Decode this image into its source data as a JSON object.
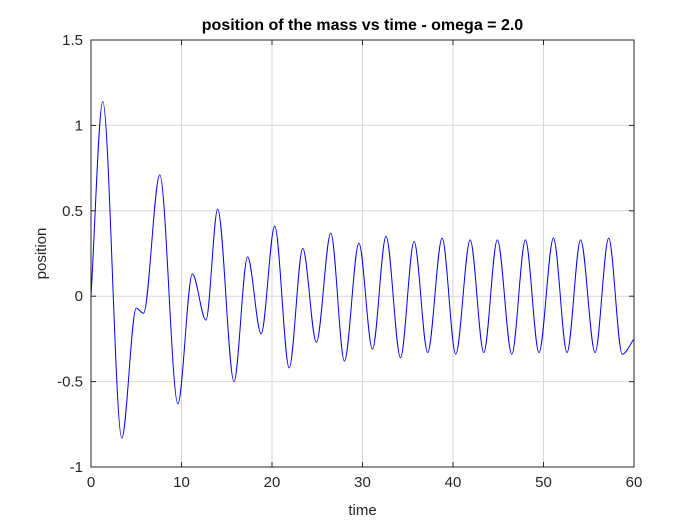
{
  "chart_data": {
    "type": "line",
    "title": "position of the mass vs time - omega = 2.0",
    "xlabel": "time",
    "ylabel": "position",
    "xlim": [
      0,
      60
    ],
    "ylim": [
      -1,
      1.5
    ],
    "xticks": [
      "0",
      "10",
      "20",
      "30",
      "40",
      "50",
      "60"
    ],
    "yticks": [
      "-1",
      "-0.5",
      "0",
      "0.5",
      "1",
      "1.5"
    ],
    "grid": true,
    "line_color": "#0000ff",
    "series": [
      {
        "x": [
          0,
          1.3,
          3.4,
          5.0,
          5.8,
          7.6,
          9.6,
          11.2,
          12.7,
          14.0,
          15.8,
          17.3,
          18.8,
          20.3,
          21.9,
          23.4,
          24.9,
          26.5,
          28.0,
          29.6,
          31.1,
          32.6,
          34.2,
          35.7,
          37.2,
          38.8,
          40.3,
          41.9,
          43.4,
          44.9,
          46.5,
          48.0,
          49.5,
          51.1,
          52.6,
          54.1,
          55.7,
          57.2,
          58.7,
          60
        ],
        "y": [
          0,
          1.14,
          -0.83,
          -0.07,
          -0.1,
          0.71,
          -0.63,
          0.13,
          -0.14,
          0.51,
          -0.5,
          0.23,
          -0.22,
          0.41,
          -0.42,
          0.28,
          -0.27,
          0.37,
          -0.38,
          0.31,
          -0.31,
          0.35,
          -0.36,
          0.32,
          -0.33,
          0.34,
          -0.34,
          0.33,
          -0.33,
          0.33,
          -0.34,
          0.33,
          -0.33,
          0.34,
          -0.33,
          0.33,
          -0.33,
          0.34,
          -0.34,
          -0.25
        ]
      }
    ]
  }
}
